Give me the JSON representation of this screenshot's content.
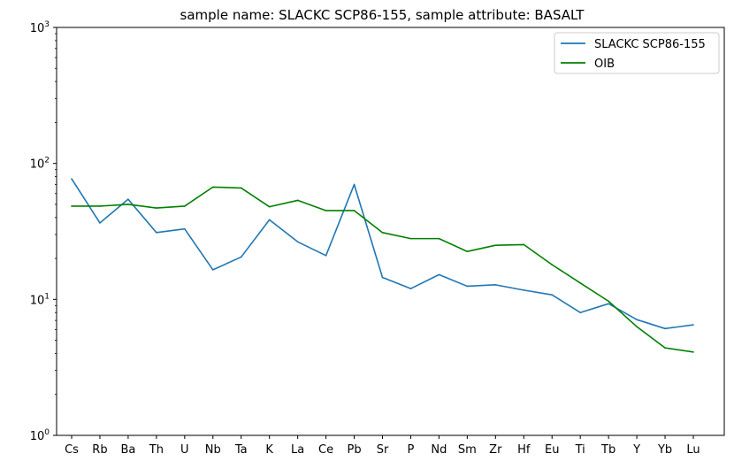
{
  "chart_data": {
    "type": "line",
    "title": "sample name: SLACKC SCP86-155, sample attribute: BASALT",
    "xlabel": "",
    "ylabel": "",
    "y_scale": "log",
    "ylim": [
      1,
      1000
    ],
    "y_ticks": [
      {
        "value": 1,
        "base": "10",
        "exp": "0"
      },
      {
        "value": 10,
        "base": "10",
        "exp": "1"
      },
      {
        "value": 100,
        "base": "10",
        "exp": "2"
      },
      {
        "value": 1000,
        "base": "10",
        "exp": "3"
      }
    ],
    "categories": [
      "Cs",
      "Rb",
      "Ba",
      "Th",
      "U",
      "Nb",
      "Ta",
      "K",
      "La",
      "Ce",
      "Pb",
      "Sr",
      "P",
      "Nd",
      "Sm",
      "Zr",
      "Hf",
      "Eu",
      "Ti",
      "Tb",
      "Y",
      "Yb",
      "Lu"
    ],
    "series": [
      {
        "name": "SLACKC SCP86-155",
        "color": "#1f77b4",
        "values": [
          77,
          36.5,
          54.5,
          31,
          33,
          16.5,
          20.5,
          38.5,
          26.5,
          21,
          70,
          14.5,
          12,
          15.2,
          12.5,
          12.8,
          11.7,
          10.8,
          8,
          9.3,
          7.1,
          6.1,
          6.5
        ]
      },
      {
        "name": "OIB",
        "color": "#008000",
        "values": [
          48.5,
          48.5,
          50,
          47,
          48.5,
          67,
          66,
          48,
          53.5,
          45,
          45,
          31,
          28,
          28,
          22.5,
          25,
          25.3,
          18,
          13.2,
          9.7,
          6.3,
          4.4,
          4.1
        ]
      }
    ],
    "grid": false,
    "legend_position": "upper right"
  }
}
